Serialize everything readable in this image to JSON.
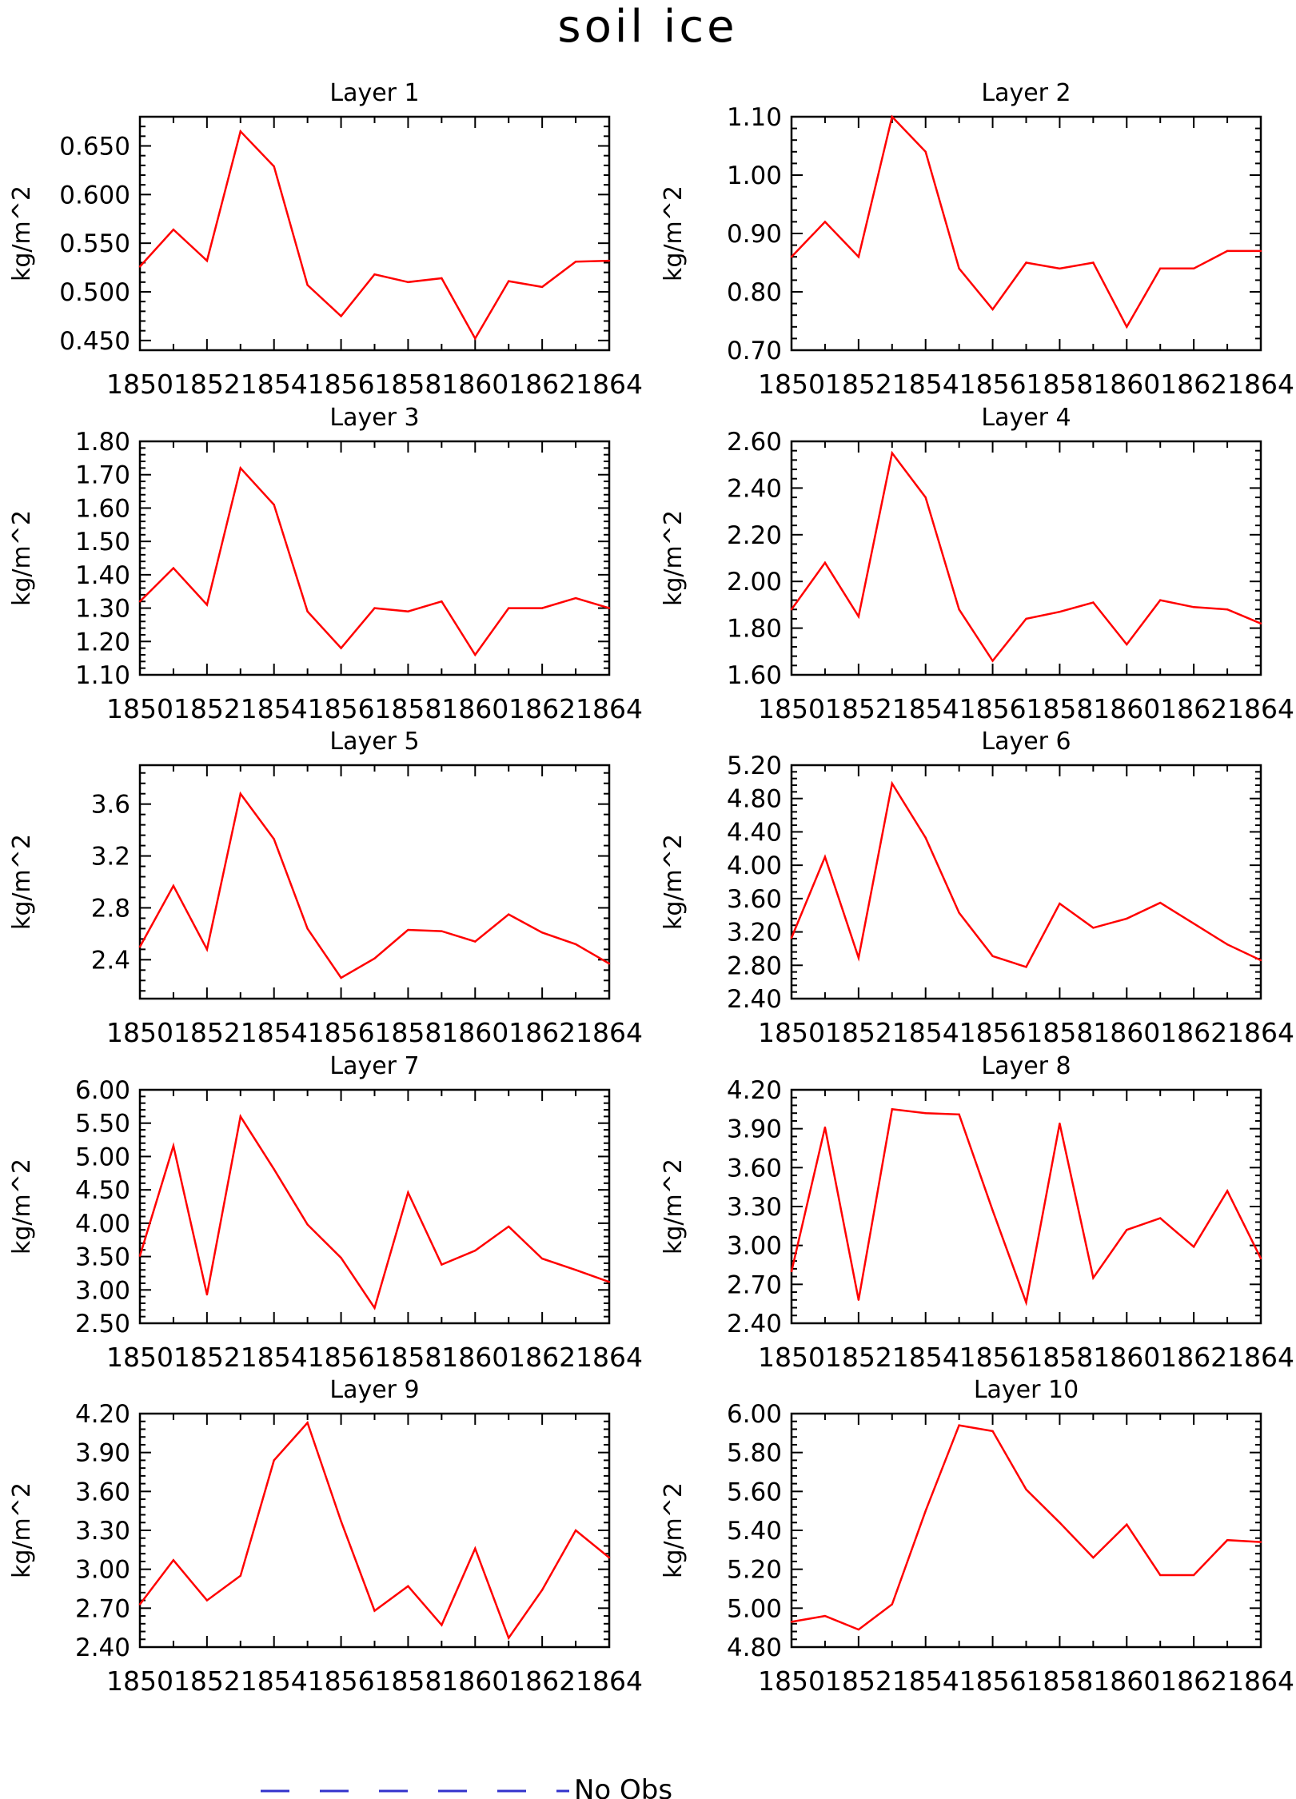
{
  "figure": {
    "title": "soil ice",
    "legend": {
      "label": "No Obs",
      "line_color": "#3333cc",
      "line_style": "dashed"
    },
    "colors": {
      "series": "#ff0000",
      "axes": "#000000",
      "background": "#ffffff"
    }
  },
  "chart_data": [
    {
      "type": "line",
      "title": "Layer 1",
      "ylabel": "kg/m^2",
      "xlabel": "",
      "x": [
        1850,
        1851,
        1852,
        1853,
        1854,
        1855,
        1856,
        1857,
        1858,
        1859,
        1860,
        1861,
        1862,
        1863,
        1864
      ],
      "values": [
        0.526,
        0.564,
        0.532,
        0.665,
        0.629,
        0.507,
        0.475,
        0.518,
        0.51,
        0.514,
        0.452,
        0.511,
        0.505,
        0.531,
        0.532
      ],
      "xlim": [
        1850,
        1864
      ],
      "ylim": [
        0.44,
        0.68
      ],
      "xticks": [
        "1850",
        "1852",
        "1854",
        "1856",
        "1858",
        "1860",
        "1862",
        "1864"
      ],
      "yticks": [
        "0.450",
        "0.500",
        "0.550",
        "0.600",
        "0.650"
      ],
      "grid": false
    },
    {
      "type": "line",
      "title": "Layer 2",
      "ylabel": "kg/m^2",
      "xlabel": "",
      "x": [
        1850,
        1851,
        1852,
        1853,
        1854,
        1855,
        1856,
        1857,
        1858,
        1859,
        1860,
        1861,
        1862,
        1863,
        1864
      ],
      "values": [
        0.86,
        0.92,
        0.86,
        1.1,
        1.04,
        0.84,
        0.77,
        0.85,
        0.84,
        0.85,
        0.74,
        0.84,
        0.84,
        0.87,
        0.87
      ],
      "xlim": [
        1850,
        1864
      ],
      "ylim": [
        0.7,
        1.1
      ],
      "xticks": [
        "1850",
        "1852",
        "1854",
        "1856",
        "1858",
        "1860",
        "1862",
        "1864"
      ],
      "yticks": [
        "0.70",
        "0.80",
        "0.90",
        "1.00",
        "1.10"
      ],
      "grid": false
    },
    {
      "type": "line",
      "title": "Layer 3",
      "ylabel": "kg/m^2",
      "xlabel": "",
      "x": [
        1850,
        1851,
        1852,
        1853,
        1854,
        1855,
        1856,
        1857,
        1858,
        1859,
        1860,
        1861,
        1862,
        1863,
        1864
      ],
      "values": [
        1.32,
        1.42,
        1.31,
        1.72,
        1.61,
        1.29,
        1.18,
        1.3,
        1.29,
        1.32,
        1.16,
        1.3,
        1.3,
        1.33,
        1.3
      ],
      "xlim": [
        1850,
        1864
      ],
      "ylim": [
        1.1,
        1.8
      ],
      "xticks": [
        "1850",
        "1852",
        "1854",
        "1856",
        "1858",
        "1860",
        "1862",
        "1864"
      ],
      "yticks": [
        "1.10",
        "1.20",
        "1.30",
        "1.40",
        "1.50",
        "1.60",
        "1.70",
        "1.80"
      ],
      "grid": false
    },
    {
      "type": "line",
      "title": "Layer 4",
      "ylabel": "kg/m^2",
      "xlabel": "",
      "x": [
        1850,
        1851,
        1852,
        1853,
        1854,
        1855,
        1856,
        1857,
        1858,
        1859,
        1860,
        1861,
        1862,
        1863,
        1864
      ],
      "values": [
        1.88,
        2.08,
        1.85,
        2.55,
        2.36,
        1.88,
        1.66,
        1.84,
        1.87,
        1.91,
        1.73,
        1.92,
        1.89,
        1.88,
        1.82
      ],
      "xlim": [
        1850,
        1864
      ],
      "ylim": [
        1.6,
        2.6
      ],
      "xticks": [
        "1850",
        "1852",
        "1854",
        "1856",
        "1858",
        "1860",
        "1862",
        "1864"
      ],
      "yticks": [
        "1.60",
        "1.80",
        "2.00",
        "2.20",
        "2.40",
        "2.60"
      ],
      "grid": false
    },
    {
      "type": "line",
      "title": "Layer 5",
      "ylabel": "kg/m^2",
      "xlabel": "",
      "x": [
        1850,
        1851,
        1852,
        1853,
        1854,
        1855,
        1856,
        1857,
        1858,
        1859,
        1860,
        1861,
        1862,
        1863,
        1864
      ],
      "values": [
        2.5,
        2.97,
        2.48,
        3.68,
        3.33,
        2.64,
        2.26,
        2.41,
        2.63,
        2.62,
        2.54,
        2.75,
        2.61,
        2.52,
        2.37
      ],
      "xlim": [
        1850,
        1864
      ],
      "ylim": [
        2.1,
        3.9
      ],
      "xticks": [
        "1850",
        "1852",
        "1854",
        "1856",
        "1858",
        "1860",
        "1862",
        "1864"
      ],
      "yticks": [
        "2.4",
        "2.8",
        "3.2",
        "3.6"
      ],
      "grid": false
    },
    {
      "type": "line",
      "title": "Layer 6",
      "ylabel": "kg/m^2",
      "xlabel": "",
      "x": [
        1850,
        1851,
        1852,
        1853,
        1854,
        1855,
        1856,
        1857,
        1858,
        1859,
        1860,
        1861,
        1862,
        1863,
        1864
      ],
      "values": [
        3.13,
        4.1,
        2.89,
        4.98,
        4.33,
        3.43,
        2.91,
        2.78,
        3.54,
        3.25,
        3.36,
        3.55,
        3.3,
        3.05,
        2.86
      ],
      "xlim": [
        1850,
        1864
      ],
      "ylim": [
        2.4,
        5.2
      ],
      "xticks": [
        "1850",
        "1852",
        "1854",
        "1856",
        "1858",
        "1860",
        "1862",
        "1864"
      ],
      "yticks": [
        "2.40",
        "2.80",
        "3.20",
        "3.60",
        "4.00",
        "4.40",
        "4.80",
        "5.20"
      ],
      "grid": false
    },
    {
      "type": "line",
      "title": "Layer 7",
      "ylabel": "kg/m^2",
      "xlabel": "",
      "x": [
        1850,
        1851,
        1852,
        1853,
        1854,
        1855,
        1856,
        1857,
        1858,
        1859,
        1860,
        1861,
        1862,
        1863,
        1864
      ],
      "values": [
        3.51,
        5.16,
        2.93,
        5.6,
        4.81,
        3.98,
        3.48,
        2.73,
        4.46,
        3.38,
        3.59,
        3.95,
        3.47,
        3.3,
        3.12
      ],
      "xlim": [
        1850,
        1864
      ],
      "ylim": [
        2.5,
        6.0
      ],
      "xticks": [
        "1850",
        "1852",
        "1854",
        "1856",
        "1858",
        "1860",
        "1862",
        "1864"
      ],
      "yticks": [
        "2.50",
        "3.00",
        "3.50",
        "4.00",
        "4.50",
        "5.00",
        "5.50",
        "6.00"
      ],
      "grid": false
    },
    {
      "type": "line",
      "title": "Layer 8",
      "ylabel": "kg/m^2",
      "xlabel": "",
      "x": [
        1850,
        1851,
        1852,
        1853,
        1854,
        1855,
        1856,
        1857,
        1858,
        1859,
        1860,
        1861,
        1862,
        1863,
        1864
      ],
      "values": [
        2.8,
        3.91,
        2.58,
        4.05,
        4.02,
        4.01,
        3.27,
        2.56,
        3.94,
        2.75,
        3.12,
        3.21,
        2.99,
        3.42,
        2.9
      ],
      "xlim": [
        1850,
        1864
      ],
      "ylim": [
        2.4,
        4.2
      ],
      "xticks": [
        "1850",
        "1852",
        "1854",
        "1856",
        "1858",
        "1860",
        "1862",
        "1864"
      ],
      "yticks": [
        "2.40",
        "2.70",
        "3.00",
        "3.30",
        "3.60",
        "3.90",
        "4.20"
      ],
      "grid": false
    },
    {
      "type": "line",
      "title": "Layer 9",
      "ylabel": "kg/m^2",
      "xlabel": "",
      "x": [
        1850,
        1851,
        1852,
        1853,
        1854,
        1855,
        1856,
        1857,
        1858,
        1859,
        1860,
        1861,
        1862,
        1863,
        1864
      ],
      "values": [
        2.73,
        3.07,
        2.76,
        2.95,
        3.84,
        4.13,
        3.37,
        2.68,
        2.87,
        2.57,
        3.16,
        2.47,
        2.84,
        3.3,
        3.09
      ],
      "xlim": [
        1850,
        1864
      ],
      "ylim": [
        2.4,
        4.2
      ],
      "xticks": [
        "1850",
        "1852",
        "1854",
        "1856",
        "1858",
        "1860",
        "1862",
        "1864"
      ],
      "yticks": [
        "2.40",
        "2.70",
        "3.00",
        "3.30",
        "3.60",
        "3.90",
        "4.20"
      ],
      "grid": false
    },
    {
      "type": "line",
      "title": "Layer 10",
      "ylabel": "kg/m^2",
      "xlabel": "",
      "x": [
        1850,
        1851,
        1852,
        1853,
        1854,
        1855,
        1856,
        1857,
        1858,
        1859,
        1860,
        1861,
        1862,
        1863,
        1864
      ],
      "values": [
        4.93,
        4.96,
        4.89,
        5.02,
        5.5,
        5.94,
        5.91,
        5.61,
        5.44,
        5.26,
        5.43,
        5.17,
        5.17,
        5.35,
        5.34
      ],
      "xlim": [
        1850,
        1864
      ],
      "ylim": [
        4.8,
        6.0
      ],
      "xticks": [
        "1850",
        "1852",
        "1854",
        "1856",
        "1858",
        "1860",
        "1862",
        "1864"
      ],
      "yticks": [
        "4.80",
        "5.00",
        "5.20",
        "5.40",
        "5.60",
        "5.80",
        "6.00"
      ],
      "grid": false
    }
  ]
}
